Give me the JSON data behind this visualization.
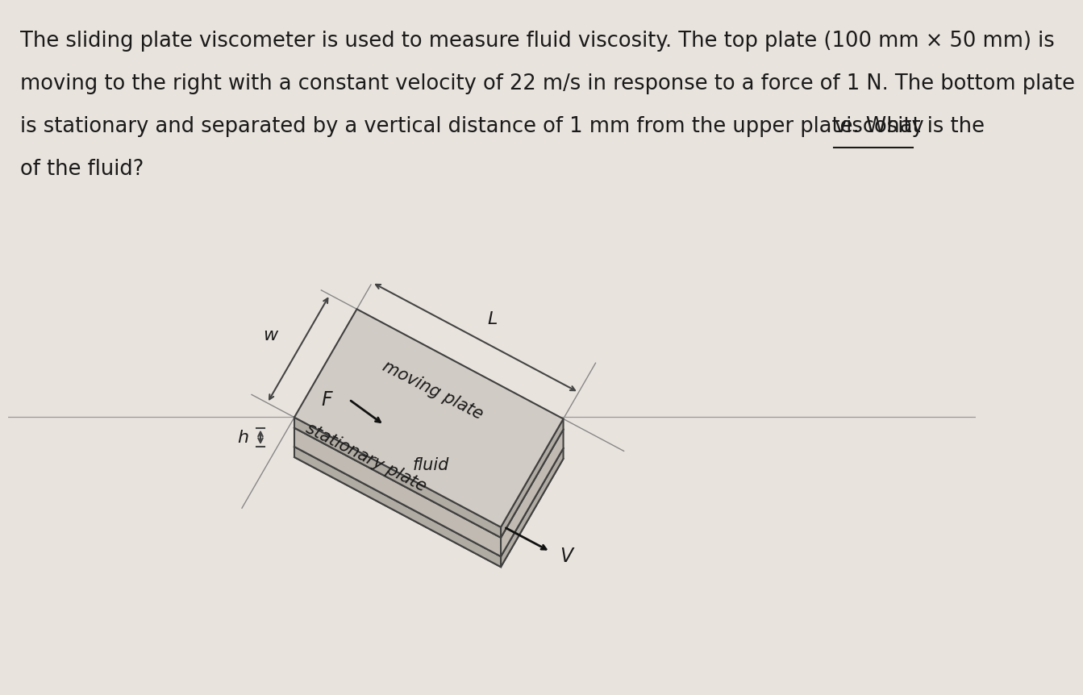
{
  "background_color": "#e8e3dd",
  "text_color": "#1a1a1a",
  "title_fontsize": 18.5,
  "label_fontsize": 16,
  "line1": "The sliding plate viscometer is used to measure fluid viscosity. The top plate (100 mm × 50 mm) is",
  "line2": "moving to the right with a constant velocity of 22 m/s in response to a force of 1 N. The bottom plate",
  "line3a": "is stationary and separated by a vertical distance of 1 mm from the upper plate. What is the ",
  "line3b": "viscosity",
  "line4": "of the fluid?",
  "color_plate_top": "#d0cbc4",
  "color_plate_side": "#b0aba3",
  "color_plate_edge": "#404040",
  "color_fluid_face": "#c0bab2",
  "color_dim_line": "#444444",
  "color_arrow": "#111111",
  "color_ext_line": "#888888",
  "color_horiz_line": "#999999"
}
